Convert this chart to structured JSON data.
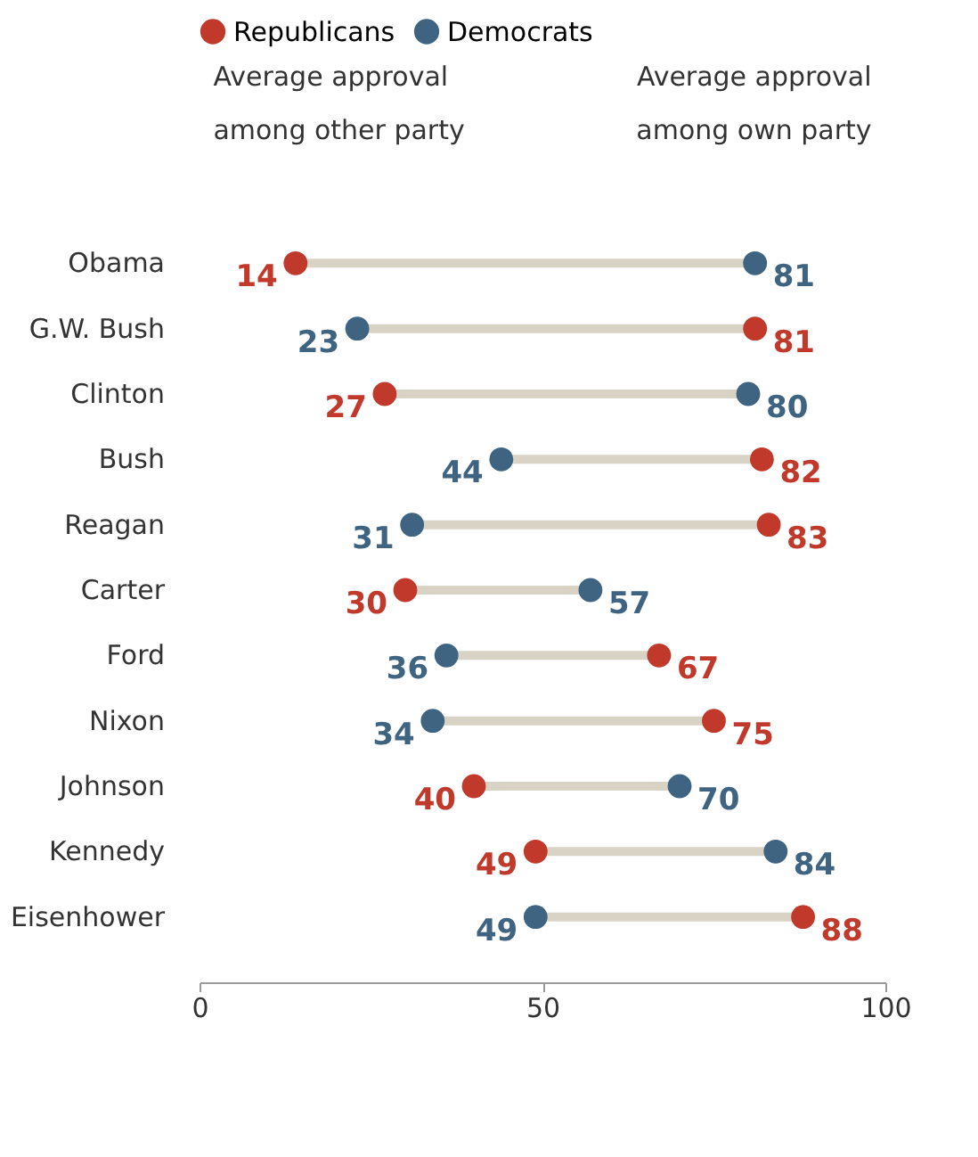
{
  "chart_data": {
    "type": "scatter",
    "categories": [
      "Obama",
      "G.W. Bush",
      "Clinton",
      "Bush",
      "Reagan",
      "Carter",
      "Ford",
      "Nixon",
      "Johnson",
      "Kennedy",
      "Eisenhower"
    ],
    "series": [
      {
        "name": "Republicans",
        "color": "#c0392b",
        "values": [
          14,
          81,
          27,
          82,
          83,
          30,
          67,
          75,
          40,
          49,
          88
        ]
      },
      {
        "name": "Democrats",
        "color": "#3e6482",
        "values": [
          81,
          23,
          80,
          44,
          31,
          57,
          36,
          34,
          70,
          84,
          49
        ]
      }
    ],
    "orientation": "horizontal",
    "xlim": [
      0,
      100
    ],
    "xticks": [
      0,
      50,
      100
    ],
    "annotations": [
      "Average approval among other party",
      "Average approval among own party"
    ],
    "data_labels": true,
    "legend": "top",
    "grid": false,
    "marker": "circle"
  }
}
